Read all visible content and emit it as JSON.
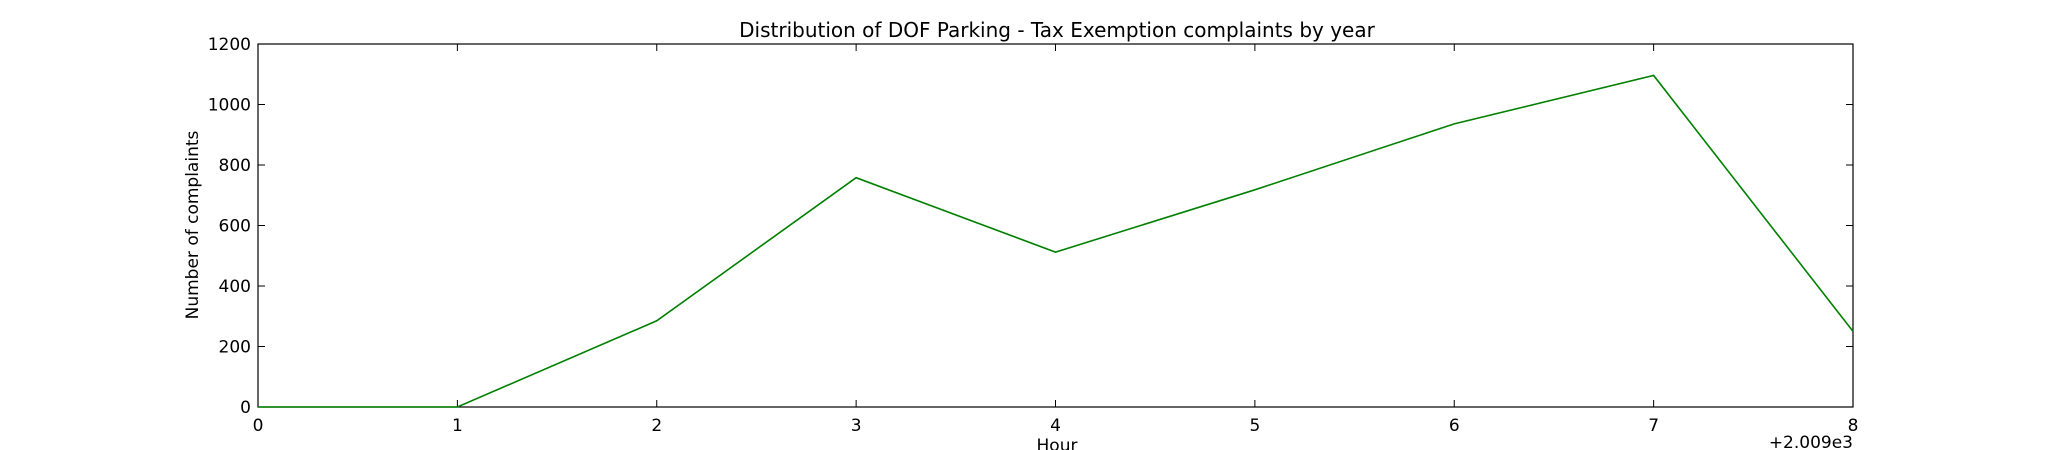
{
  "chart_data": {
    "type": "line",
    "title": "Distribution of  DOF Parking - Tax Exemption complaints by year",
    "xlabel": "Hour",
    "ylabel": "Number of complaints",
    "x_offset_label": "+2.009e3",
    "x": [
      0,
      1,
      2,
      3,
      4,
      5,
      6,
      7,
      8
    ],
    "series": [
      {
        "values": [
          0,
          0,
          285,
          758,
          512,
          718,
          936,
          1096,
          250
        ],
        "color": "#008000"
      }
    ],
    "xlim": [
      0,
      8
    ],
    "ylim": [
      0,
      1200
    ],
    "xticks": [
      0,
      1,
      2,
      3,
      4,
      5,
      6,
      7,
      8
    ],
    "yticks": [
      0,
      200,
      400,
      600,
      800,
      1000,
      1200
    ],
    "grid": false,
    "legend": "none"
  }
}
